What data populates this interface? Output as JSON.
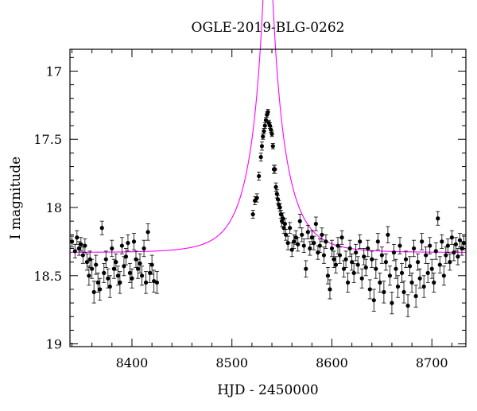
{
  "chart_data": {
    "type": "scatter",
    "title": "OGLE-2019-BLG-0262",
    "xlabel": "HJD - 2450000",
    "ylabel": "I magnitude",
    "xlim": [
      8338,
      8734
    ],
    "ylim": [
      19.02,
      16.84
    ],
    "y_inverted": true,
    "xticks": [
      8400,
      8500,
      8600,
      8700
    ],
    "xtick_labels": [
      "8400",
      "8500",
      "8600",
      "8700"
    ],
    "yticks": [
      17,
      17.5,
      18,
      18.5,
      19
    ],
    "ytick_labels": [
      "17",
      "17.5",
      "18",
      "18.5",
      "19"
    ],
    "grid": false,
    "series": [
      {
        "kind": "points_with_errorbars",
        "color": "#000000",
        "points": [
          [
            8340,
            18.25,
            0.04
          ],
          [
            8343,
            18.32,
            0.05
          ],
          [
            8345,
            18.22,
            0.05
          ],
          [
            8347,
            18.3,
            0.05
          ],
          [
            8349,
            18.27,
            0.05
          ],
          [
            8351,
            18.35,
            0.06
          ],
          [
            8353,
            18.28,
            0.05
          ],
          [
            8355,
            18.4,
            0.06
          ],
          [
            8357,
            18.5,
            0.07
          ],
          [
            8358,
            18.38,
            0.06
          ],
          [
            8360,
            18.45,
            0.07
          ],
          [
            8362,
            18.62,
            0.08
          ],
          [
            8364,
            18.42,
            0.07
          ],
          [
            8366,
            18.55,
            0.07
          ],
          [
            8368,
            18.6,
            0.08
          ],
          [
            8370,
            18.15,
            0.05
          ],
          [
            8372,
            18.48,
            0.07
          ],
          [
            8374,
            18.38,
            0.06
          ],
          [
            8376,
            18.52,
            0.07
          ],
          [
            8378,
            18.58,
            0.08
          ],
          [
            8380,
            18.3,
            0.06
          ],
          [
            8382,
            18.45,
            0.07
          ],
          [
            8384,
            18.4,
            0.06
          ],
          [
            8386,
            18.5,
            0.07
          ],
          [
            8388,
            18.55,
            0.08
          ],
          [
            8390,
            18.28,
            0.06
          ],
          [
            8392,
            18.43,
            0.07
          ],
          [
            8394,
            18.36,
            0.06
          ],
          [
            8396,
            18.26,
            0.06
          ],
          [
            8398,
            18.48,
            0.07
          ],
          [
            8400,
            18.52,
            0.07
          ],
          [
            8402,
            18.25,
            0.06
          ],
          [
            8404,
            18.38,
            0.06
          ],
          [
            8406,
            18.45,
            0.07
          ],
          [
            8408,
            18.41,
            0.07
          ],
          [
            8410,
            18.5,
            0.07
          ],
          [
            8412,
            18.3,
            0.06
          ],
          [
            8414,
            18.55,
            0.08
          ],
          [
            8416,
            18.18,
            0.06
          ],
          [
            8418,
            18.48,
            0.07
          ],
          [
            8420,
            18.42,
            0.07
          ],
          [
            8422,
            18.54,
            0.08
          ],
          [
            8425,
            18.55,
            0.08
          ],
          [
            8521,
            18.05,
            0.03
          ],
          [
            8523,
            17.95,
            0.03
          ],
          [
            8525,
            17.93,
            0.03
          ],
          [
            8527,
            17.77,
            0.03
          ],
          [
            8529,
            17.63,
            0.03
          ],
          [
            8530,
            17.55,
            0.03
          ],
          [
            8531,
            17.48,
            0.02
          ],
          [
            8532,
            17.44,
            0.02
          ],
          [
            8533,
            17.4,
            0.02
          ],
          [
            8534,
            17.36,
            0.02
          ],
          [
            8535,
            17.32,
            0.02
          ],
          [
            8536,
            17.3,
            0.02
          ],
          [
            8537,
            17.38,
            0.02
          ],
          [
            8538,
            17.4,
            0.02
          ],
          [
            8539,
            17.43,
            0.02
          ],
          [
            8540,
            17.46,
            0.02
          ],
          [
            8541,
            17.55,
            0.02
          ],
          [
            8542,
            17.72,
            0.03
          ],
          [
            8543,
            17.72,
            0.03
          ],
          [
            8544,
            17.85,
            0.03
          ],
          [
            8545,
            17.9,
            0.03
          ],
          [
            8546,
            17.94,
            0.03
          ],
          [
            8547,
            17.98,
            0.03
          ],
          [
            8548,
            18.0,
            0.03
          ],
          [
            8549,
            18.05,
            0.03
          ],
          [
            8550,
            18.1,
            0.04
          ],
          [
            8551,
            18.08,
            0.04
          ],
          [
            8552,
            18.15,
            0.04
          ],
          [
            8553,
            18.12,
            0.04
          ],
          [
            8554,
            18.2,
            0.04
          ],
          [
            8556,
            18.26,
            0.05
          ],
          [
            8558,
            18.15,
            0.04
          ],
          [
            8560,
            18.31,
            0.05
          ],
          [
            8562,
            18.25,
            0.05
          ],
          [
            8564,
            18.22,
            0.05
          ],
          [
            8566,
            18.27,
            0.05
          ],
          [
            8568,
            18.1,
            0.05
          ],
          [
            8570,
            18.2,
            0.05
          ],
          [
            8572,
            18.28,
            0.05
          ],
          [
            8574,
            18.45,
            0.06
          ],
          [
            8576,
            18.18,
            0.05
          ],
          [
            8578,
            18.3,
            0.05
          ],
          [
            8580,
            18.22,
            0.05
          ],
          [
            8582,
            18.26,
            0.05
          ],
          [
            8584,
            18.12,
            0.05
          ],
          [
            8586,
            18.33,
            0.05
          ],
          [
            8588,
            18.28,
            0.05
          ],
          [
            8590,
            18.2,
            0.05
          ],
          [
            8592,
            18.35,
            0.06
          ],
          [
            8594,
            18.25,
            0.05
          ],
          [
            8596,
            18.5,
            0.06
          ],
          [
            8598,
            18.6,
            0.07
          ],
          [
            8600,
            18.3,
            0.06
          ],
          [
            8602,
            18.38,
            0.06
          ],
          [
            8604,
            18.42,
            0.06
          ],
          [
            8606,
            18.28,
            0.06
          ],
          [
            8608,
            18.35,
            0.06
          ],
          [
            8610,
            18.22,
            0.05
          ],
          [
            8612,
            18.45,
            0.06
          ],
          [
            8614,
            18.38,
            0.06
          ],
          [
            8616,
            18.55,
            0.07
          ],
          [
            8618,
            18.3,
            0.06
          ],
          [
            8620,
            18.4,
            0.06
          ],
          [
            8622,
            18.48,
            0.07
          ],
          [
            8624,
            18.33,
            0.06
          ],
          [
            8626,
            18.42,
            0.06
          ],
          [
            8628,
            18.25,
            0.05
          ],
          [
            8630,
            18.52,
            0.07
          ],
          [
            8632,
            18.36,
            0.06
          ],
          [
            8634,
            18.44,
            0.06
          ],
          [
            8636,
            18.3,
            0.06
          ],
          [
            8638,
            18.6,
            0.07
          ],
          [
            8640,
            18.38,
            0.06
          ],
          [
            8642,
            18.68,
            0.08
          ],
          [
            8644,
            18.45,
            0.07
          ],
          [
            8646,
            18.25,
            0.06
          ],
          [
            8648,
            18.55,
            0.07
          ],
          [
            8650,
            18.35,
            0.06
          ],
          [
            8652,
            18.62,
            0.08
          ],
          [
            8654,
            18.4,
            0.06
          ],
          [
            8656,
            18.2,
            0.06
          ],
          [
            8658,
            18.5,
            0.07
          ],
          [
            8660,
            18.7,
            0.08
          ],
          [
            8662,
            18.33,
            0.06
          ],
          [
            8664,
            18.45,
            0.07
          ],
          [
            8666,
            18.58,
            0.08
          ],
          [
            8668,
            18.28,
            0.06
          ],
          [
            8670,
            18.48,
            0.07
          ],
          [
            8672,
            18.62,
            0.08
          ],
          [
            8674,
            18.38,
            0.06
          ],
          [
            8676,
            18.72,
            0.08
          ],
          [
            8678,
            18.43,
            0.07
          ],
          [
            8680,
            18.55,
            0.07
          ],
          [
            8682,
            18.3,
            0.06
          ],
          [
            8684,
            18.65,
            0.08
          ],
          [
            8686,
            18.4,
            0.06
          ],
          [
            8688,
            18.52,
            0.07
          ],
          [
            8690,
            18.25,
            0.06
          ],
          [
            8692,
            18.58,
            0.08
          ],
          [
            8694,
            18.35,
            0.06
          ],
          [
            8696,
            18.48,
            0.07
          ],
          [
            8698,
            18.28,
            0.06
          ],
          [
            8700,
            18.45,
            0.07
          ],
          [
            8702,
            18.55,
            0.07
          ],
          [
            8704,
            18.32,
            0.06
          ],
          [
            8706,
            18.08,
            0.05
          ],
          [
            8708,
            18.42,
            0.06
          ],
          [
            8710,
            18.25,
            0.05
          ],
          [
            8712,
            18.5,
            0.07
          ],
          [
            8714,
            18.35,
            0.06
          ],
          [
            8716,
            18.28,
            0.05
          ],
          [
            8718,
            18.4,
            0.06
          ],
          [
            8720,
            18.22,
            0.05
          ],
          [
            8722,
            18.33,
            0.06
          ],
          [
            8724,
            18.27,
            0.05
          ],
          [
            8726,
            18.36,
            0.06
          ],
          [
            8728,
            18.24,
            0.05
          ],
          [
            8730,
            18.3,
            0.05
          ],
          [
            8732,
            18.26,
            0.05
          ]
        ]
      },
      {
        "kind": "model_curve",
        "color": "#ff00ff",
        "baseline_mag": 18.33,
        "t0": 8536,
        "u0": 0.1,
        "tE": 32
      }
    ]
  }
}
